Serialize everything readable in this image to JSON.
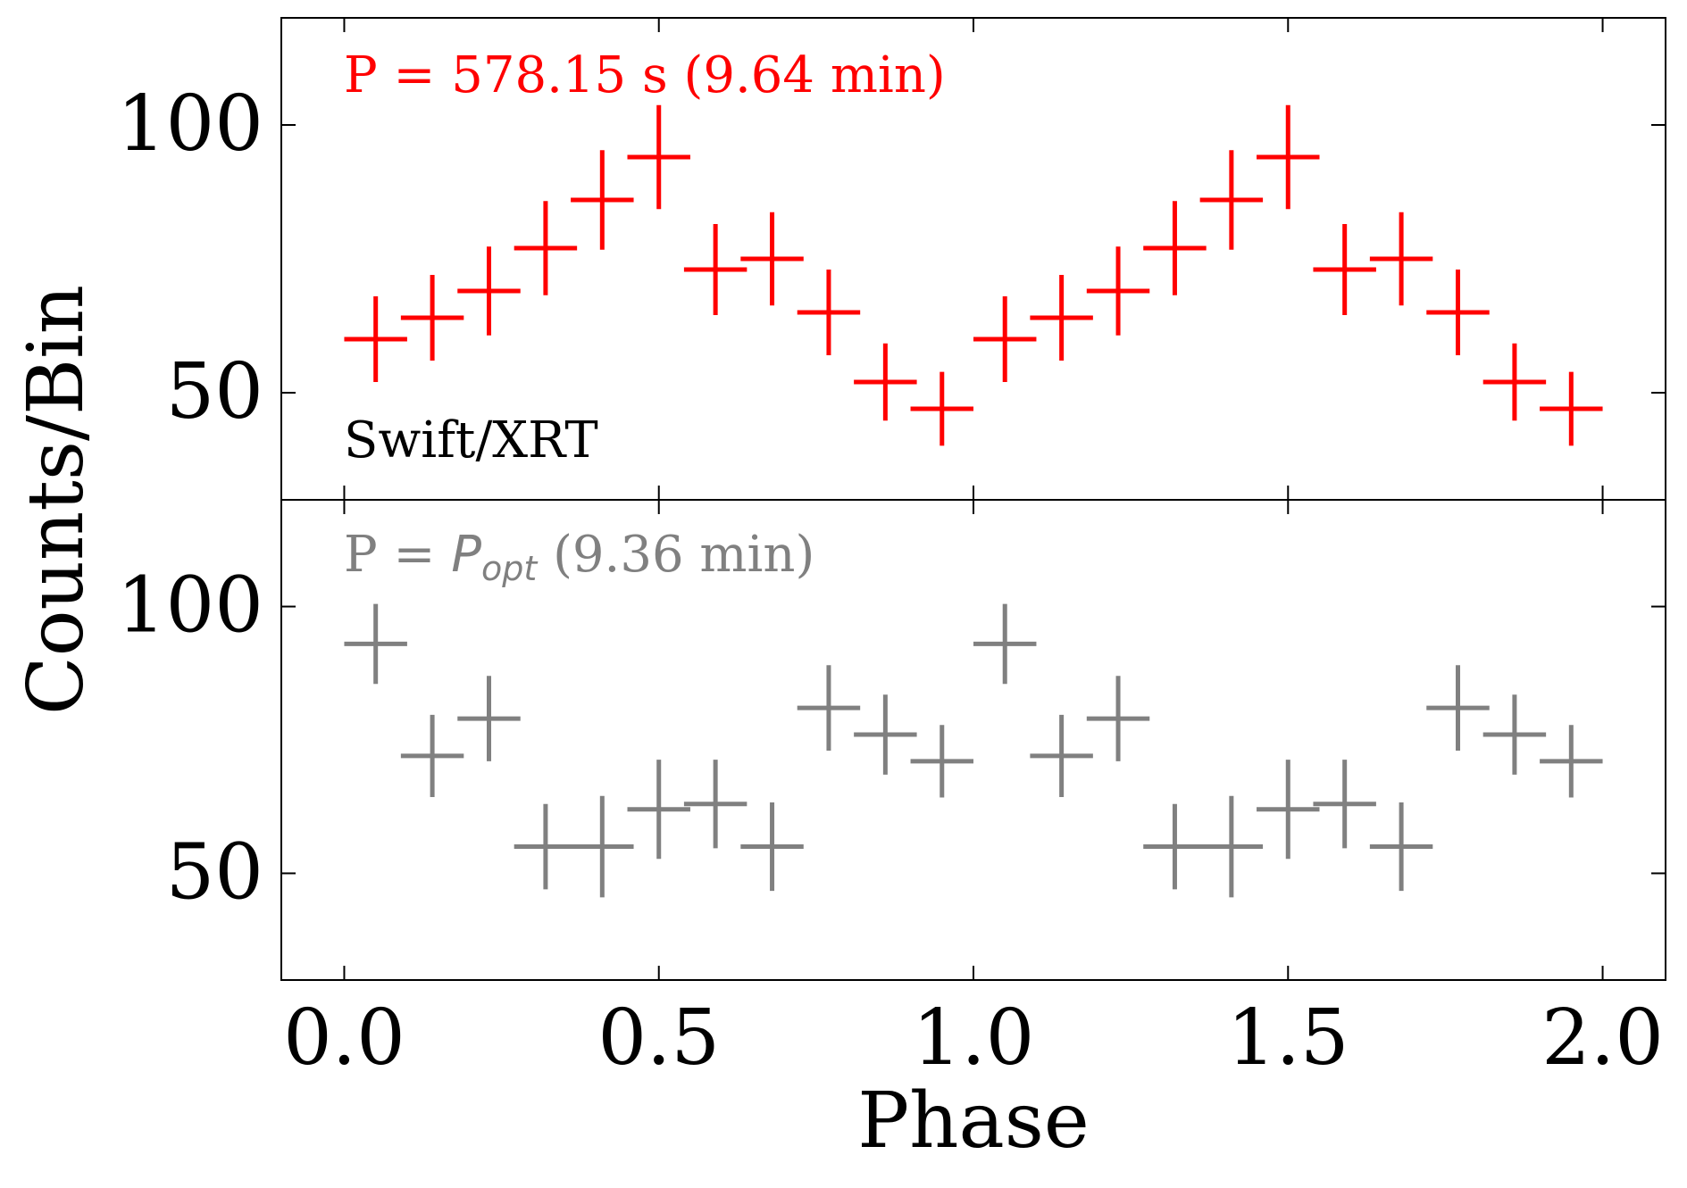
{
  "chart_data": [
    {
      "type": "scatter",
      "panel": "top",
      "annotation": "P = 578.15 s (9.64 min)",
      "label": "Swift/XRT",
      "color": "#ff0000",
      "xlim": [
        -0.1,
        2.1
      ],
      "ylim": [
        30,
        120
      ],
      "yticks": [
        50,
        100
      ],
      "x_half_width": 0.05,
      "series": [
        {
          "x": [
            0.05,
            0.14,
            0.23,
            0.32,
            0.41,
            0.5,
            0.59,
            0.68,
            0.77,
            0.86,
            0.95,
            1.05,
            1.14,
            1.23,
            1.32,
            1.41,
            1.5,
            1.59,
            1.68,
            1.77,
            1.86,
            1.95
          ],
          "y": [
            60,
            64,
            69,
            77,
            86,
            94,
            73,
            75,
            65,
            52,
            47,
            60,
            64,
            69,
            77,
            86,
            94,
            73,
            75,
            65,
            52,
            47
          ],
          "yerr": [
            8,
            8,
            8.3,
            8.8,
            9.3,
            9.7,
            8.5,
            8.7,
            8,
            7.2,
            6.9,
            8,
            8,
            8.3,
            8.8,
            9.3,
            9.7,
            8.5,
            8.7,
            8,
            7.2,
            6.9
          ]
        }
      ]
    },
    {
      "type": "scatter",
      "panel": "bottom",
      "annotation_prefix": "P = ",
      "annotation_symbol": "P",
      "annotation_subscript": "opt",
      "annotation_suffix": " (9.36 min)",
      "color": "#808080",
      "xlim": [
        -0.1,
        2.1
      ],
      "ylim": [
        30,
        120
      ],
      "yticks": [
        50,
        100
      ],
      "x_half_width": 0.05,
      "series": [
        {
          "x": [
            0.05,
            0.14,
            0.23,
            0.32,
            0.41,
            0.5,
            0.59,
            0.68,
            0.77,
            0.86,
            0.95,
            1.05,
            1.14,
            1.23,
            1.32,
            1.41,
            1.5,
            1.59,
            1.68,
            1.77,
            1.86,
            1.95
          ],
          "y": [
            93,
            72,
            79,
            55,
            55,
            62,
            63,
            55,
            81,
            76,
            71,
            93,
            72,
            79,
            55,
            55,
            62,
            63,
            55,
            81,
            76,
            71
          ],
          "yerr": [
            7.5,
            7.7,
            8,
            8,
            9.5,
            9.3,
            8.3,
            8.3,
            8,
            7.5,
            6.8,
            7.5,
            7.7,
            8,
            8,
            9.5,
            9.3,
            8.3,
            8.3,
            8,
            7.5,
            6.8
          ]
        }
      ]
    }
  ],
  "axes": {
    "xlabel": "Phase",
    "ylabel": "Counts/Bin",
    "xticks": [
      0.0,
      0.5,
      1.0,
      1.5,
      2.0
    ],
    "xtick_labels": [
      "0.0",
      "0.5",
      "1.0",
      "1.5",
      "2.0"
    ],
    "ytick_labels": [
      "50",
      "100"
    ]
  }
}
